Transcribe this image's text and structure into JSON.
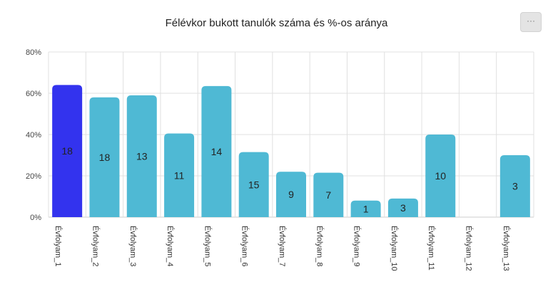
{
  "chart_data": {
    "type": "bar",
    "title": "Félévkor bukott tanulók száma és %-os aránya",
    "categories": [
      "Évfolyam_1",
      "Évfolyam_2",
      "Évfolyam_3",
      "Évfolyam_4",
      "Évfolyam_5",
      "Évfolyam_6",
      "Évfolyam_7",
      "Évfolyam_8",
      "Évfolyam_9",
      "Évfolyam_10",
      "Évfolyam_11",
      "Évfolyam_12",
      "Évfolyam_13"
    ],
    "values": [
      64,
      58,
      59,
      40.5,
      63.5,
      31.5,
      22,
      21.5,
      8,
      9,
      40,
      0,
      30
    ],
    "data_labels": [
      "18",
      "18",
      "13",
      "11",
      "14",
      "15",
      "9",
      "7",
      "1",
      "3",
      "10",
      "",
      "3"
    ],
    "ylim": [
      0,
      80
    ],
    "yticks": [
      "0%",
      "20%",
      "40%",
      "60%",
      "80%"
    ],
    "ytick_values": [
      0,
      20,
      40,
      60,
      80
    ],
    "grid": true,
    "colors": {
      "bar": "#4fb9d4",
      "highlight": "#3333ee",
      "grid": "#e0e0e0"
    },
    "highlight_index": 0
  },
  "menu_button": {
    "label": "···",
    "icon": "more-icon"
  }
}
